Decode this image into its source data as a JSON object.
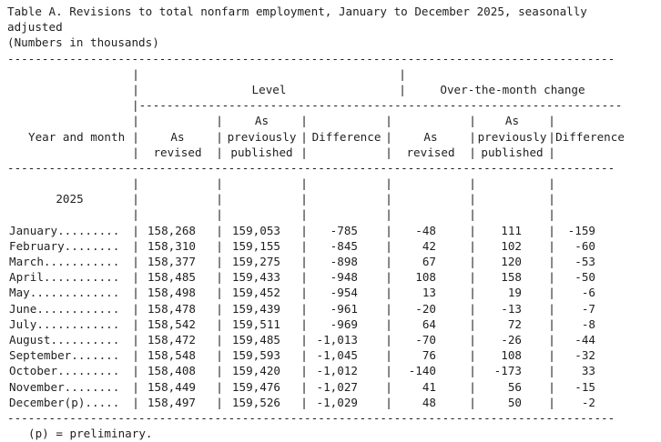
{
  "title": {
    "line1": "Table A. Revisions to total nonfarm employment, January to December 2025, seasonally",
    "line2": "adjusted"
  },
  "subtitle": "(Numbers in thousands)",
  "table": {
    "row_header": "Year and month",
    "year": "2025",
    "groups": [
      "Level",
      "Over-the-month change"
    ],
    "column_headers": {
      "line1": [
        "",
        "As",
        "",
        "",
        "As",
        ""
      ],
      "line2": [
        "As",
        "previously",
        "Difference",
        "As",
        "previously",
        "Difference"
      ],
      "line3": [
        "revised",
        "published",
        "",
        "revised",
        "published",
        ""
      ]
    },
    "rows": [
      {
        "month": "January.........",
        "values": [
          "158,268",
          "159,053",
          "-785",
          "-48",
          "111",
          "-159"
        ]
      },
      {
        "month": "February........",
        "values": [
          "158,310",
          "159,155",
          "-845",
          "42",
          "102",
          "-60"
        ]
      },
      {
        "month": "March...........",
        "values": [
          "158,377",
          "159,275",
          "-898",
          "67",
          "120",
          "-53"
        ]
      },
      {
        "month": "April...........",
        "values": [
          "158,485",
          "159,433",
          "-948",
          "108",
          "158",
          "-50"
        ]
      },
      {
        "month": "May.............",
        "values": [
          "158,498",
          "159,452",
          "-954",
          "13",
          "19",
          "-6"
        ]
      },
      {
        "month": "June............",
        "values": [
          "158,478",
          "159,439",
          "-961",
          "-20",
          "-13",
          "-7"
        ]
      },
      {
        "month": "July............",
        "values": [
          "158,542",
          "159,511",
          "-969",
          "64",
          "72",
          "-8"
        ]
      },
      {
        "month": "August..........",
        "values": [
          "158,472",
          "159,485",
          "-1,013",
          "-70",
          "-26",
          "-44"
        ]
      },
      {
        "month": "September.......",
        "values": [
          "158,548",
          "159,593",
          "-1,045",
          "76",
          "108",
          "-32"
        ]
      },
      {
        "month": "October.........",
        "values": [
          "158,408",
          "159,420",
          "-1,012",
          "-140",
          "-173",
          "33"
        ]
      },
      {
        "month": "November........",
        "values": [
          "158,449",
          "159,476",
          "-1,027",
          "41",
          "56",
          "-15"
        ]
      },
      {
        "month": "December(p).....",
        "values": [
          "158,497",
          "159,526",
          "-1,029",
          "48",
          "50",
          "-2"
        ]
      }
    ]
  },
  "footnote": "(p) = preliminary.",
  "divider": {
    "char": "-",
    "pipe": "|",
    "full_count": 88,
    "sub_count": 70
  },
  "colors": {
    "text": "#1f1f1f",
    "background": "#ffffff"
  }
}
